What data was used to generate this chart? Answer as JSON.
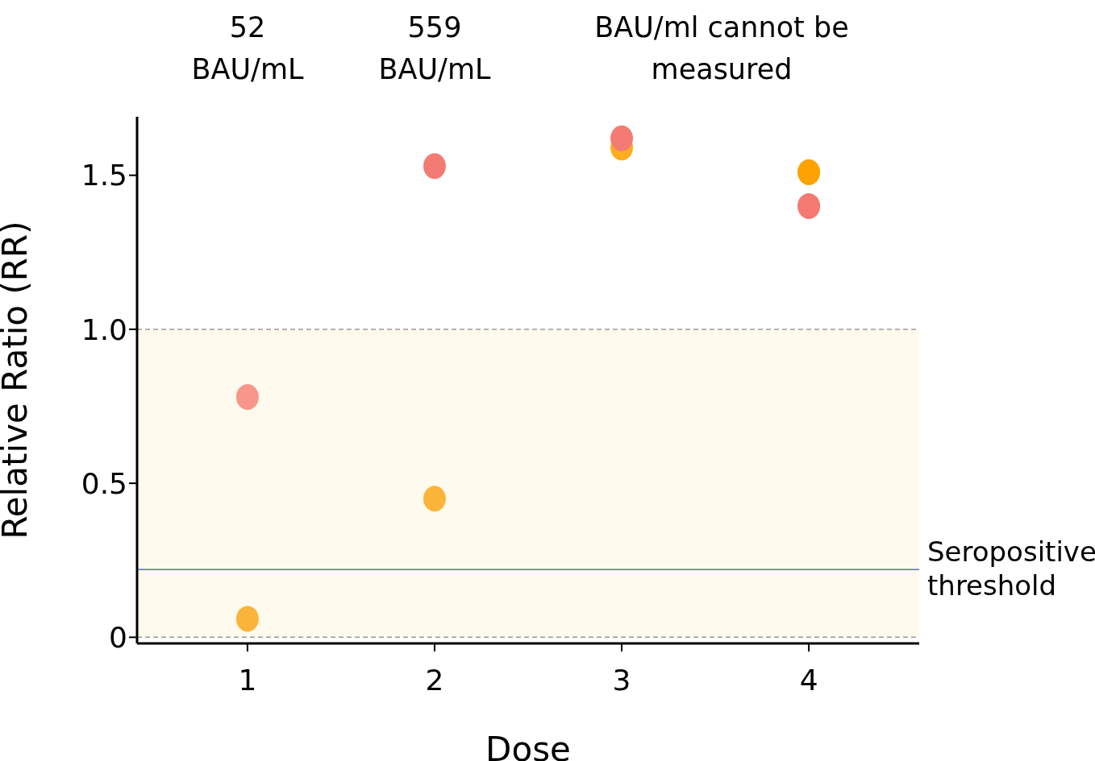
{
  "chart_data": {
    "type": "scatter",
    "xlabel": "Dose",
    "ylabel": "Relative Ratio (RR)",
    "xlim": [
      0.41,
      4.59
    ],
    "xticks": [
      1,
      2,
      3,
      4
    ],
    "ylim": [
      -0.02,
      1.69
    ],
    "yticks": [
      0,
      0.5,
      {
        "value": 1,
        "label": "1.0"
      },
      1.5
    ],
    "series": [
      {
        "x": [
          1,
          2,
          3,
          4
        ],
        "values": [
          0.06,
          0.45,
          1.59,
          1.51
        ],
        "colors": [
          "#fbb43a",
          "#fbb43a",
          "#fcae1e",
          "#fba200"
        ]
      },
      {
        "x": [
          1,
          2,
          3,
          4
        ],
        "values": [
          0.78,
          1.53,
          1.62,
          1.4
        ],
        "colors": [
          "#f7968a",
          "#f47b73",
          "#f47b73",
          "#f47a72"
        ]
      }
    ],
    "bands": [
      {
        "axis": "y",
        "from": 0,
        "to": 1,
        "color": "#fffaee"
      }
    ],
    "ref_lines": [
      {
        "axis": "y",
        "value": 0,
        "line_style": "dashed",
        "color": "#999999"
      },
      {
        "axis": "y",
        "value": 1,
        "line_style": "dashed",
        "color": "#999999"
      },
      {
        "axis": "y",
        "value": 0.22,
        "label": "Seropositive threshold",
        "color": "#5573b5",
        "line_style": "solid"
      }
    ],
    "annotations": [
      "52 BAU/mL",
      "559 BAU/mL",
      "BAU/ml cannot be measured"
    ],
    "grid": false,
    "legend": false,
    "marker": "circle"
  }
}
